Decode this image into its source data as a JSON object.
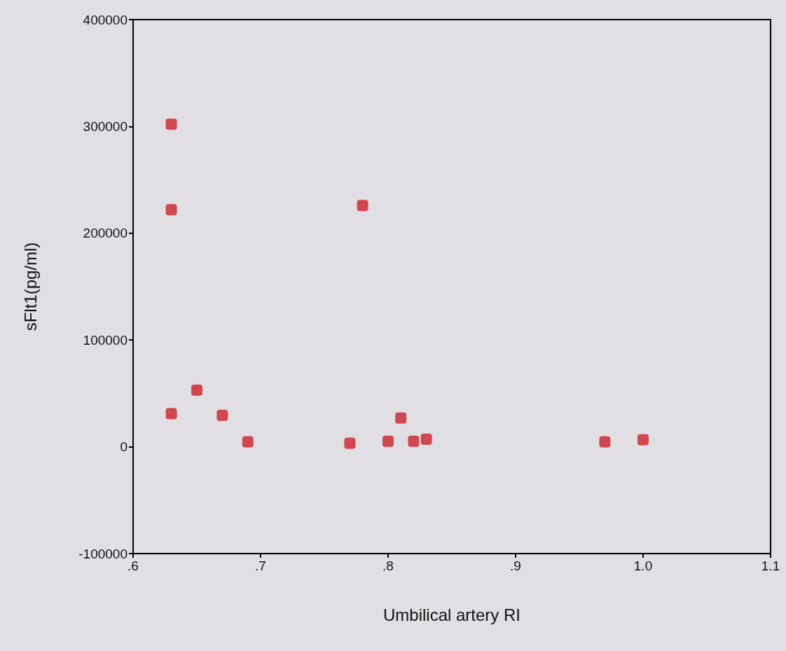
{
  "chart_data": {
    "type": "scatter",
    "xlabel": "Umbilical artery RI",
    "ylabel": "sFlt1(pg/ml)",
    "x": [
      0.63,
      0.63,
      0.63,
      0.65,
      0.67,
      0.69,
      0.77,
      0.78,
      0.8,
      0.81,
      0.82,
      0.83,
      0.97,
      1.0
    ],
    "values": [
      302000,
      222000,
      31000,
      53000,
      29500,
      4600,
      3300,
      226000,
      5200,
      27000,
      5200,
      7200,
      4600,
      6600
    ],
    "color": "#cc2229",
    "marker": "square",
    "xlim": [
      0.6,
      1.1
    ],
    "xticks": [
      {
        "value": 0.6,
        "label": ".6"
      },
      {
        "value": 0.7,
        "label": ".7"
      },
      {
        "value": 0.8,
        "label": ".8"
      },
      {
        "value": 0.9,
        "label": ".9"
      },
      {
        "value": 1.0,
        "label": "1.0"
      },
      {
        "value": 1.1,
        "label": "1.1"
      }
    ],
    "ylim": [
      -100000,
      400000
    ],
    "yticks": [
      -100000,
      0,
      100000,
      200000,
      300000,
      400000
    ],
    "grid": false
  }
}
